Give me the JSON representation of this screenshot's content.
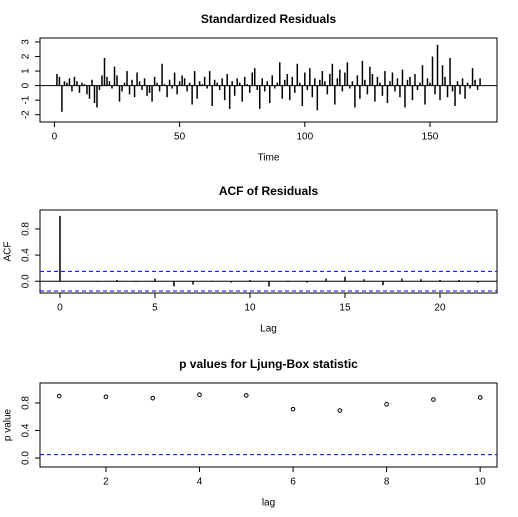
{
  "chart_data": [
    {
      "type": "bar",
      "title": "Standardized Residuals",
      "x_label": "Time",
      "color": "#000000",
      "x": [
        1,
        2,
        3,
        4,
        5,
        6,
        7,
        8,
        9,
        10,
        11,
        12,
        13,
        14,
        15,
        16,
        17,
        18,
        19,
        20,
        21,
        22,
        23,
        24,
        25,
        26,
        27,
        28,
        29,
        30,
        31,
        32,
        33,
        34,
        35,
        36,
        37,
        38,
        39,
        40,
        41,
        42,
        43,
        44,
        45,
        46,
        47,
        48,
        49,
        50,
        51,
        52,
        53,
        54,
        55,
        56,
        57,
        58,
        59,
        60,
        61,
        62,
        63,
        64,
        65,
        66,
        67,
        68,
        69,
        70,
        71,
        72,
        73,
        74,
        75,
        76,
        77,
        78,
        79,
        80,
        81,
        82,
        83,
        84,
        85,
        86,
        87,
        88,
        89,
        90,
        91,
        92,
        93,
        94,
        95,
        96,
        97,
        98,
        99,
        100,
        101,
        102,
        103,
        104,
        105,
        106,
        107,
        108,
        109,
        110,
        111,
        112,
        113,
        114,
        115,
        116,
        117,
        118,
        119,
        120,
        121,
        122,
        123,
        124,
        125,
        126,
        127,
        128,
        129,
        130,
        131,
        132,
        133,
        134,
        135,
        136,
        137,
        138,
        139,
        140,
        141,
        142,
        143,
        144,
        145,
        146,
        147,
        148,
        149,
        150,
        151,
        152,
        153,
        154,
        155,
        156,
        157,
        158,
        159,
        160,
        161,
        162,
        163,
        164,
        165,
        166,
        167,
        168,
        169,
        170
      ],
      "values": [
        0.8,
        0.6,
        -1.8,
        0.3,
        0.2,
        0.5,
        -0.4,
        0.6,
        0.3,
        -0.5,
        0.2,
        0.1,
        -0.6,
        -0.9,
        0.4,
        -1.2,
        -1.5,
        -0.3,
        0.7,
        1.9,
        0.6,
        0.3,
        -0.2,
        1.3,
        0.7,
        -1.1,
        -0.4,
        0.2,
        1.0,
        -0.6,
        0.4,
        -0.8,
        0.9,
        0.3,
        -0.3,
        0.5,
        -0.7,
        -0.5,
        -1.1,
        0.6,
        0.2,
        -0.4,
        1.5,
        0.1,
        -0.8,
        0.4,
        -0.2,
        0.9,
        -0.6,
        0.3,
        0.7,
        0.5,
        -0.4,
        0.2,
        -1.3,
        1.0,
        -0.9,
        0.3,
        0.1,
        0.6,
        -0.2,
        1.0,
        -1.4,
        0.4,
        0.2,
        -0.3,
        0.5,
        -1.0,
        0.8,
        -1.6,
        0.3,
        -0.7,
        0.5,
        0.2,
        -1.1,
        0.6,
        0.1,
        -0.5,
        0.9,
        1.2,
        -0.3,
        -1.6,
        0.5,
        -0.4,
        0.3,
        -1.2,
        0.7,
        -0.2,
        0.2,
        1.6,
        -0.9,
        0.4,
        0.8,
        -1.0,
        0.6,
        -0.5,
        1.5,
        0.2,
        -1.4,
        0.9,
        -0.3,
        1.2,
        -0.8,
        0.5,
        -1.7,
        0.4,
        1.0,
        0.3,
        -0.6,
        0.8,
        1.5,
        -1.3,
        0.5,
        1.1,
        -0.4,
        0.9,
        1.6,
        -0.2,
        0.3,
        -1.5,
        0.7,
        -0.9,
        1.7,
        0.4,
        -0.6,
        1.3,
        0.8,
        -1.1,
        0.6,
        0.2,
        -0.7,
        1.0,
        -1.2,
        0.3,
        0.9,
        -0.4,
        0.5,
        -0.8,
        1.1,
        -1.5,
        0.4,
        0.6,
        -1.0,
        0.8,
        -0.3,
        0.2,
        1.4,
        -1.3,
        0.5,
        0.2,
        2.0,
        -0.6,
        2.8,
        -1.0,
        1.4,
        0.6,
        -0.8,
        1.9,
        -0.4,
        -1.4,
        0.3,
        -0.6,
        0.5,
        -0.9,
        0.2,
        -0.2,
        1.2,
        0.4,
        -0.3,
        0.5
      ],
      "xlim": [
        -5.76,
        176.76
      ],
      "xticks": [
        0,
        50,
        100,
        150
      ],
      "ylim": [
        -2.5,
        3.27
      ],
      "yticks": [
        -2,
        -1,
        0,
        1,
        2,
        3
      ]
    },
    {
      "type": "bar",
      "title": "ACF of Residuals",
      "x_label": "Lag",
      "y_label": "ACF",
      "color": "#000000",
      "x": [
        0,
        1,
        2,
        3,
        4,
        5,
        6,
        7,
        8,
        9,
        10,
        11,
        12,
        13,
        14,
        15,
        16,
        17,
        18,
        19,
        20,
        21,
        22
      ],
      "values": [
        1,
        0.0,
        -0.01,
        0.02,
        -0.01,
        0.04,
        -0.08,
        -0.05,
        0.01,
        -0.02,
        0.02,
        -0.08,
        0.01,
        -0.02,
        0.04,
        0.07,
        0.03,
        -0.06,
        0.04,
        0.03,
        0.02,
        0.02,
        -0.02
      ],
      "ci_lines": [
        0.15,
        -0.15
      ],
      "ci_color": "#0000ff",
      "xlim": [
        -1.05,
        23
      ],
      "xticks": [
        0,
        5,
        10,
        15,
        20
      ],
      "ylim": [
        -0.18,
        1.09
      ],
      "yticks": [
        {
          "value": 0,
          "label": "0.0"
        },
        {
          "value": 0.4,
          "label": "0.4"
        },
        {
          "value": 0.8,
          "label": "0.8"
        }
      ]
    },
    {
      "type": "scatter",
      "title": "p values for Ljung-Box statistic",
      "x_label": "lag",
      "y_label": "p value",
      "color": "#000000",
      "x": [
        1,
        2,
        3,
        4,
        5,
        6,
        7,
        8,
        9,
        10
      ],
      "values": [
        0.9,
        0.89,
        0.87,
        0.92,
        0.91,
        0.71,
        0.69,
        0.78,
        0.85,
        0.88
      ],
      "ci_lines": [
        0.05
      ],
      "ci_color": "#0000ff",
      "xlim": [
        0.59,
        10.36
      ],
      "xticks": [
        2,
        4,
        6,
        8,
        10
      ],
      "ylim": [
        -0.13,
        1.09
      ],
      "yticks": [
        {
          "value": 0,
          "label": "0.0"
        },
        {
          "value": 0.4,
          "label": "0.4"
        },
        {
          "value": 0.8,
          "label": "0.8"
        }
      ]
    }
  ]
}
